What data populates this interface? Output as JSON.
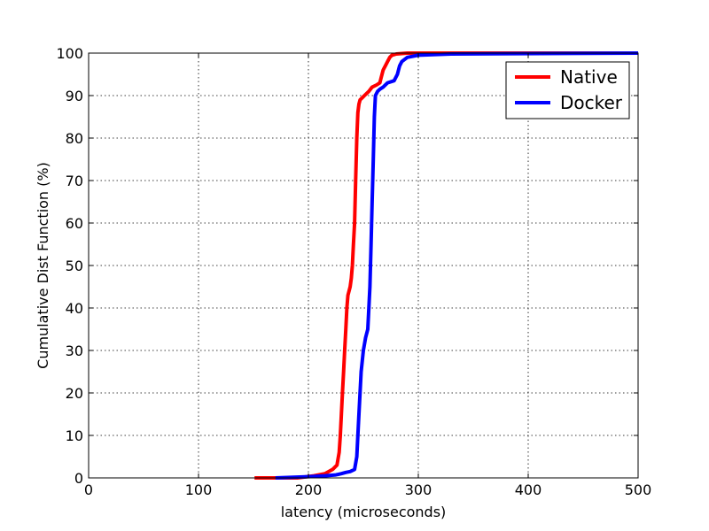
{
  "chart_data": {
    "type": "line",
    "title": "",
    "xlabel": "latency (microseconds)",
    "ylabel": "Cumulative Dist Function (%)",
    "xlim": [
      0,
      500
    ],
    "ylim": [
      0,
      100
    ],
    "xticks": [
      "0",
      "100",
      "200",
      "300",
      "400",
      "500"
    ],
    "yticks": [
      "0",
      "10",
      "20",
      "30",
      "40",
      "50",
      "60",
      "70",
      "80",
      "90",
      "100"
    ],
    "grid": true,
    "legend_position": "top-right",
    "series": [
      {
        "name": "Native",
        "color": "#ff0000",
        "x": [
          151,
          190,
          205,
          215,
          222,
          226,
          228,
          229,
          230,
          231,
          232,
          233,
          234,
          235,
          236,
          238,
          239,
          240,
          241,
          242,
          243,
          244,
          245,
          246,
          247,
          249,
          251,
          255,
          258,
          262,
          265,
          266,
          268,
          270,
          272,
          274,
          276,
          280,
          290,
          300,
          500
        ],
        "y": [
          0,
          0,
          0.5,
          1,
          2,
          3,
          6,
          10,
          15,
          20,
          25,
          30,
          35,
          40,
          43,
          45,
          47,
          50,
          55,
          60,
          70,
          80,
          86,
          88,
          89,
          89.5,
          90,
          91,
          92,
          92.5,
          93,
          94,
          96,
          97,
          98,
          99,
          99.5,
          99.8,
          100,
          100,
          100
        ]
      },
      {
        "name": "Docker",
        "color": "#0000ff",
        "x": [
          170,
          200,
          215,
          225,
          230,
          234,
          238,
          242,
          244,
          245,
          246,
          248,
          250,
          252,
          254,
          255,
          256,
          257,
          258,
          259,
          260,
          261,
          263,
          265,
          268,
          272,
          278,
          281,
          283,
          285,
          290,
          300,
          330,
          500
        ],
        "y": [
          0,
          0.3,
          0.5,
          0.7,
          1,
          1.3,
          1.5,
          2,
          5,
          10,
          15,
          25,
          30,
          33,
          35,
          40,
          45,
          55,
          65,
          75,
          85,
          90,
          91,
          91.5,
          92,
          93,
          93.5,
          95,
          97,
          98,
          99,
          99.5,
          99.8,
          100
        ]
      }
    ]
  }
}
